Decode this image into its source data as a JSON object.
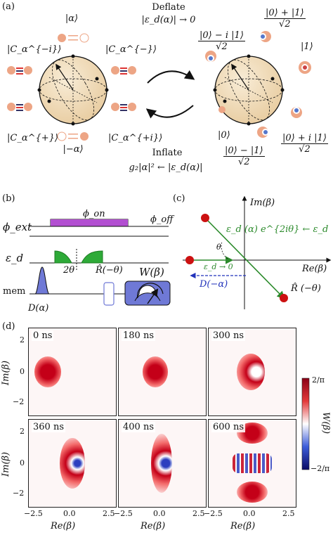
{
  "panel_a": {
    "label": "(a)",
    "deflate_title": "Deflate",
    "deflate_cond": "|ε_d(α)| → 0",
    "inflate_title": "Inflate",
    "inflate_cond": "g₂|α|² ← |ε_d(α)|",
    "left_states": {
      "top": "|α⟩",
      "upper_left": "|C_α^{−i}⟩",
      "upper_right": "|C_α^{−}⟩",
      "lower_left": "|C_α^{+}⟩",
      "lower_right": "|C_α^{+i}⟩",
      "bottom": "|−α⟩"
    },
    "right_states": {
      "top_num": "|0⟩ + |1⟩",
      "top_den": "√2",
      "upper_left_num": "|0⟩ − i |1⟩",
      "upper_left_den": "√2",
      "right": "|1⟩",
      "left": "|0⟩",
      "bottom_num": "|0⟩ − |1⟩",
      "bottom_den": "√2",
      "lower_right_num": "|0⟩ + i |1⟩",
      "lower_right_den": "√2"
    }
  },
  "panel_b": {
    "label": "(b)",
    "phi_ext": "ϕ_ext",
    "phi_on": "ϕ_on",
    "phi_off": "ϕ_off",
    "eps_d": "ε_d",
    "two_theta": "2θ",
    "rotation": "R̂(−θ)",
    "wigner": "W(β)",
    "mem": "mem",
    "displacement": "D(α)",
    "colors": {
      "phi_pulse": "#b24fd1",
      "eps_pulse": "#2eaa38",
      "mem_pulse": "#6f79d6",
      "wigner_box": "#6f79d6"
    }
  },
  "panel_c": {
    "label": "(c)",
    "im_axis": "Im(β)",
    "re_axis": "Re(β)",
    "drive_label": "ε_d (α) e^{2iθ} ← ε_d",
    "eps_zero": "ε_d → 0",
    "displacement": "D(−α)",
    "theta": "θ",
    "rotation": "R̂ (−θ)",
    "colors": {
      "arrow": "#2b8a2b",
      "dashed": "#2233bb",
      "point": "#cc1111"
    }
  },
  "panel_d": {
    "label": "(d)",
    "time_labels": [
      "0 ns",
      "180 ns",
      "300 ns",
      "360 ns",
      "400 ns",
      "600 ns"
    ],
    "y_axis_label": "Im(β)",
    "x_axis_label": "Re(β)",
    "y_ticks": [
      "2",
      "0",
      "−2"
    ],
    "x_ticks": [
      "−2.5",
      "0.0",
      "2.5"
    ],
    "colorbar_label": "W(β)",
    "colorbar_ticks": [
      "2/π",
      "0",
      "−2/π"
    ],
    "colors": {
      "positive": "#b0001a",
      "negative": "#1a1aa0",
      "neutral": "#ffffff"
    }
  }
}
